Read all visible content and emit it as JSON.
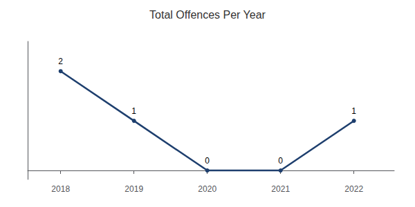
{
  "chart_data": {
    "type": "line",
    "title": "Total Offences Per Year",
    "x": [
      2018,
      2019,
      2020,
      2021,
      2022
    ],
    "values": [
      2,
      1,
      0,
      0,
      1
    ],
    "color": "#1e3f6e",
    "xlim": [
      2017.55,
      2022.55
    ],
    "xticks": [
      2018,
      2019,
      2020,
      2021,
      2022
    ],
    "ylim": [
      -0.18,
      2.6
    ],
    "grid": false,
    "data_labels": true,
    "tick_labels": "x"
  }
}
